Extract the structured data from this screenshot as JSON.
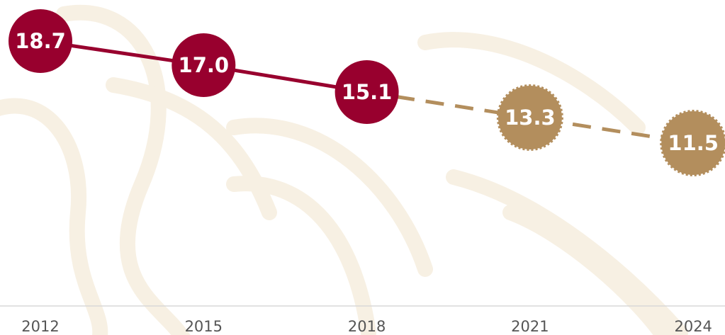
{
  "chart_data": {
    "type": "line",
    "categories": [
      "2012",
      "2015",
      "2018",
      "2021",
      "2024"
    ],
    "series": [
      {
        "color": "#98002e",
        "style": "solid",
        "values": [
          18.7,
          17.0,
          15.1,
          null,
          null
        ],
        "value_labels": [
          "18.7",
          "17.0",
          "15.1",
          null,
          null
        ]
      },
      {
        "color": "#b38e5d",
        "style": "dashed",
        "values": [
          null,
          null,
          15.1,
          13.3,
          11.5
        ],
        "value_labels": [
          null,
          null,
          null,
          "13.3",
          "11.5"
        ]
      }
    ],
    "ylim": [
      0,
      21.6
    ]
  }
}
